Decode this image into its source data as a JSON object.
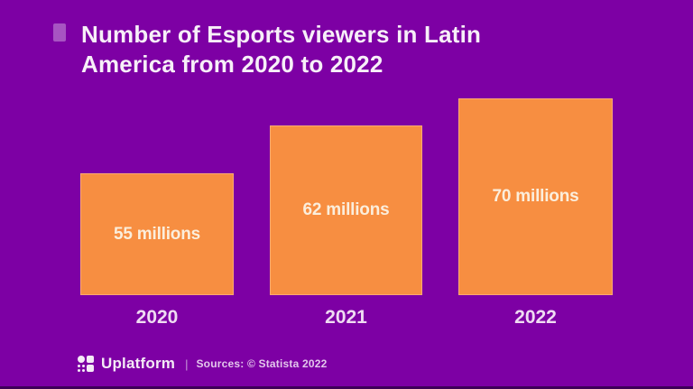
{
  "title": {
    "line1": "Number of Esports viewers in Latin",
    "line2": "America from 2020 to 2022"
  },
  "chart_data": {
    "type": "bar",
    "title": "Number of Esports viewers in Latin America from 2020 to 2022",
    "categories": [
      "2020",
      "2021",
      "2022"
    ],
    "values": [
      55,
      62,
      70
    ],
    "unit": "millions",
    "value_labels": [
      "55 millions",
      "62 millions",
      "70 millions"
    ],
    "xlabel": "",
    "ylabel": "",
    "grid": false,
    "legend": "none",
    "value_label_position": "inside-center",
    "bar_color": "#F78E41",
    "background_color": "#7D00A4"
  },
  "footer": {
    "brand": "Uplatform",
    "separator": "|",
    "source": "Sources: © Statista 2022"
  },
  "colors": {
    "background": "#7D00A4",
    "bar": "#F78E41",
    "title_text": "#F7EFF8",
    "bar_label_text": "#FBEEDC",
    "year_label_text": "#EFDBF2",
    "title_bullet": "#A65BBB",
    "footer_brand_text": "#F4EBF6",
    "footer_source_text": "#E3C6EC"
  }
}
